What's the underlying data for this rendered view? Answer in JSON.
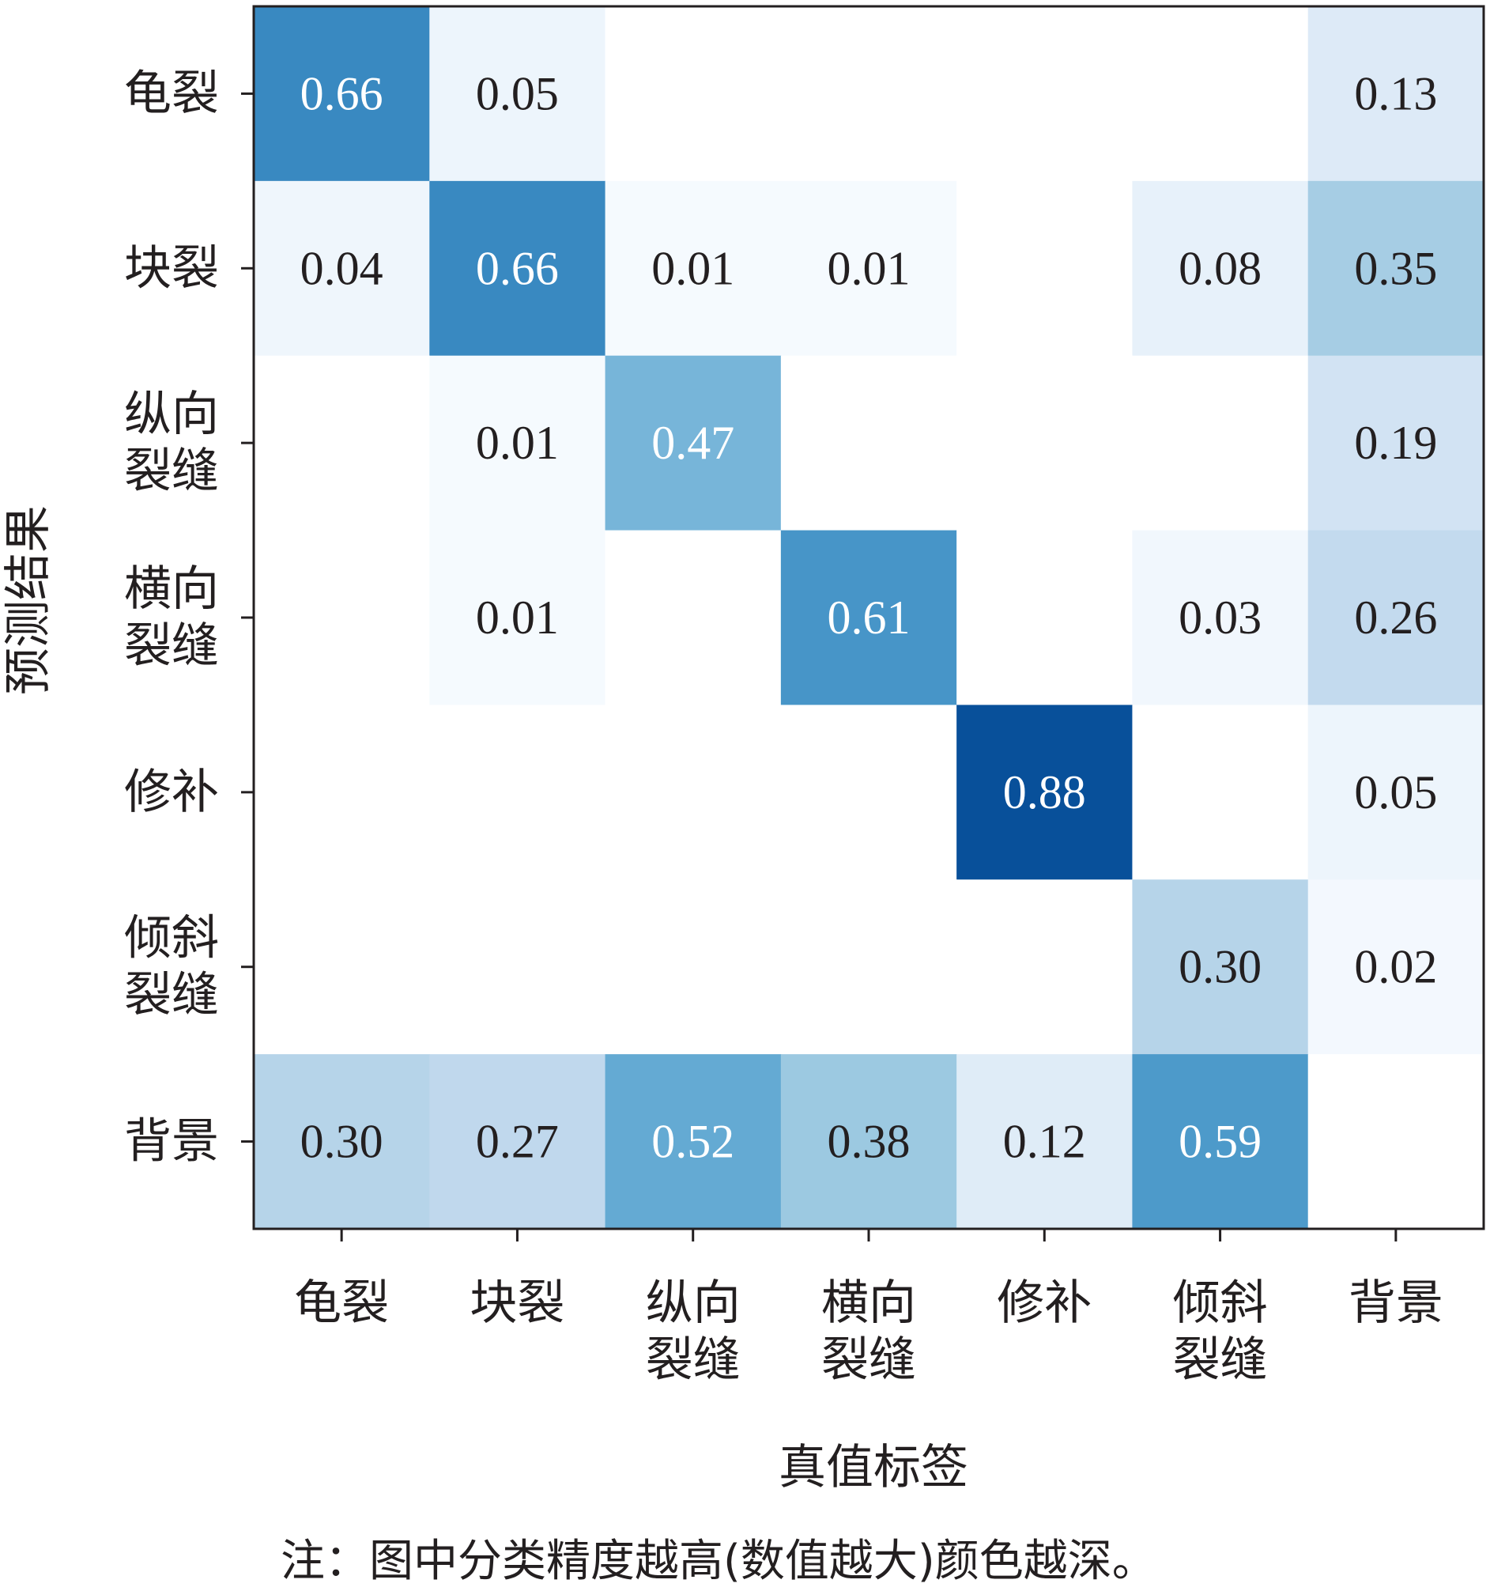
{
  "chart_data": {
    "type": "heatmap",
    "title": "",
    "xlabel": "真值标签",
    "ylabel": "预测结果",
    "x_categories": [
      [
        "龟裂"
      ],
      [
        "块裂"
      ],
      [
        "纵向",
        "裂缝"
      ],
      [
        "横向",
        "裂缝"
      ],
      [
        "修补"
      ],
      [
        "倾斜",
        "裂缝"
      ],
      [
        "背景"
      ]
    ],
    "y_categories": [
      [
        "龟裂"
      ],
      [
        "块裂"
      ],
      [
        "纵向",
        "裂缝"
      ],
      [
        "横向",
        "裂缝"
      ],
      [
        "修补"
      ],
      [
        "倾斜",
        "裂缝"
      ],
      [
        "背景"
      ]
    ],
    "values": [
      [
        0.66,
        0.05,
        null,
        null,
        null,
        null,
        0.13
      ],
      [
        0.04,
        0.66,
        0.01,
        0.01,
        null,
        0.08,
        0.35
      ],
      [
        null,
        0.01,
        0.47,
        null,
        null,
        null,
        0.19
      ],
      [
        null,
        0.01,
        null,
        0.61,
        null,
        0.03,
        0.26
      ],
      [
        null,
        null,
        null,
        null,
        0.88,
        null,
        0.05
      ],
      [
        null,
        null,
        null,
        null,
        null,
        0.3,
        0.02
      ],
      [
        0.3,
        0.27,
        0.52,
        0.38,
        0.12,
        0.59,
        null
      ]
    ],
    "labels": [
      [
        "0.66",
        "0.05",
        "",
        "",
        "",
        "",
        "0.13"
      ],
      [
        "0.04",
        "0.66",
        "0.01",
        "0.01",
        "",
        "0.08",
        "0.35"
      ],
      [
        "",
        "0.01",
        "0.47",
        "",
        "",
        "",
        "0.19"
      ],
      [
        "",
        "0.01",
        "",
        "0.61",
        "",
        "0.03",
        "0.26"
      ],
      [
        "",
        "",
        "",
        "",
        "0.88",
        "",
        "0.05"
      ],
      [
        "",
        "",
        "",
        "",
        "",
        "0.30",
        "0.02"
      ],
      [
        "0.30",
        "0.27",
        "0.52",
        "0.38",
        "0.12",
        "0.59",
        ""
      ]
    ],
    "colormap": "Blues",
    "value_range": [
      0,
      1
    ],
    "grid": false,
    "legend": "none"
  },
  "note": "注：图中分类精度越高(数值越大)颜色越深。"
}
